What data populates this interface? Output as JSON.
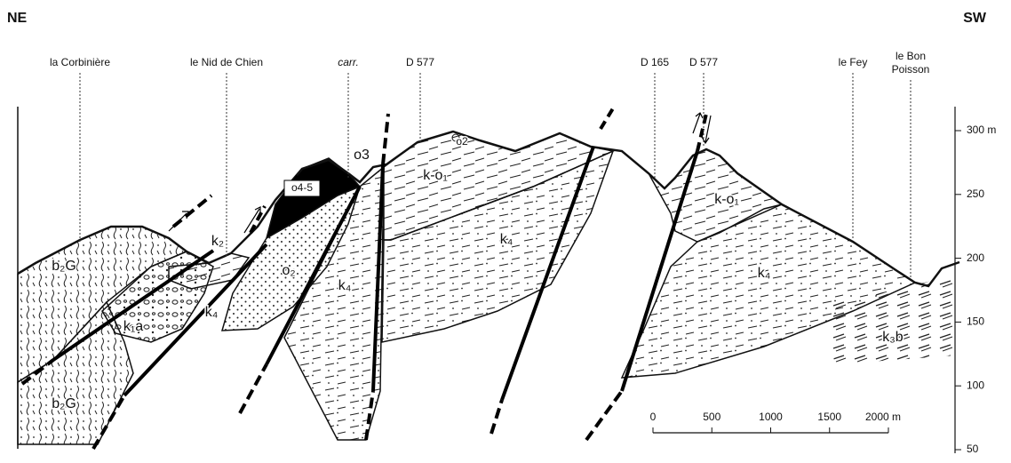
{
  "orientation": {
    "left": "NE",
    "right": "SW"
  },
  "places": [
    "la Corbinière",
    "le Nid de Chien",
    "carr.",
    "D 577",
    "D 165",
    "D 577",
    "le Fey",
    "le Bon Poisson"
  ],
  "units": [
    "b₂G",
    "b₂G",
    "k₂",
    "k₁a",
    "k₄",
    "o₂",
    "o4-5",
    "o3",
    "o2",
    "k-o₁",
    "k₄",
    "k₄",
    "k-o₁",
    "k₄",
    "k₃b"
  ],
  "elevation_axis": {
    "ticks": [
      {
        "value": 300,
        "label": "300 m"
      },
      250,
      200,
      150,
      100,
      50
    ]
  },
  "scale_bar": {
    "ticks": [
      0,
      500,
      1000,
      1500,
      {
        "value": 2000,
        "label": "2000 m"
      }
    ]
  }
}
